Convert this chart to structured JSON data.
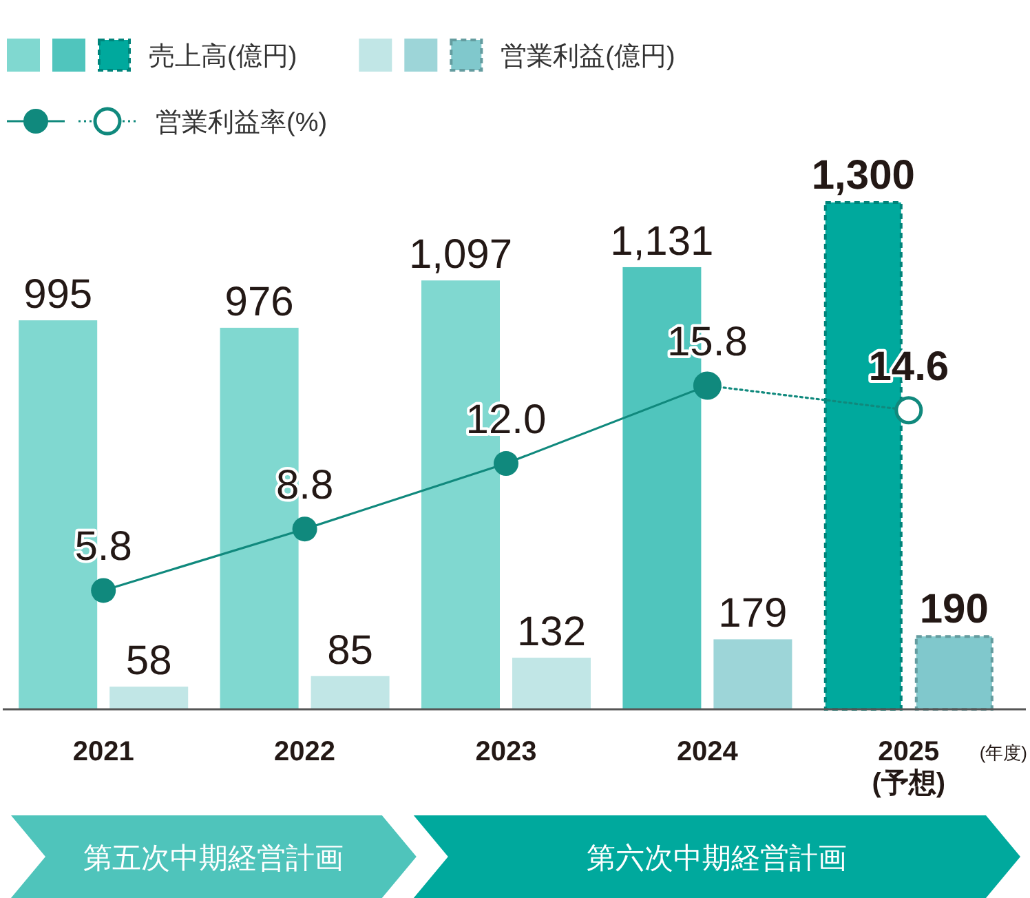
{
  "chart_data": {
    "type": "bar",
    "categories": [
      "2021",
      "2022",
      "2023",
      "2024",
      "2025\n(予想)"
    ],
    "xlabel": "(年度)",
    "tick_labels": "x",
    "legend": "top left",
    "series": [
      {
        "colors": [
          "#80d8d0",
          "#80d8d0",
          "#80d8d0",
          "#50c5bd",
          null
        ],
        "values": [
          995,
          976,
          1097,
          1131,
          null
        ],
        "value_labels": [
          "995",
          "976",
          "1,097",
          "1,131",
          null
        ]
      },
      {
        "name": "売上高(億円)",
        "color": "#00a99d",
        "line_style": "dashed",
        "values": [
          null,
          null,
          null,
          null,
          1300
        ],
        "value_labels": [
          null,
          null,
          null,
          null,
          "1,300"
        ]
      },
      {
        "colors": [
          "#c1e6e6",
          "#c1e6e6",
          "#c1e6e6",
          "#9dd5d8",
          null
        ],
        "values": [
          58,
          85,
          132,
          179,
          null
        ],
        "value_labels": [
          "58",
          "85",
          "132",
          "179",
          null
        ]
      },
      {
        "name": "営業利益(億円)",
        "color": "#80c8cc",
        "line_style": "dashed",
        "values": [
          null,
          null,
          null,
          null,
          190
        ],
        "value_labels": [
          null,
          null,
          null,
          null,
          "190"
        ]
      },
      {
        "type": "line",
        "axis": "y2",
        "color": "#10897d",
        "marker": "circle",
        "line_style": "solid",
        "values": [
          5.8,
          8.8,
          12.0,
          15.8,
          null
        ],
        "value_labels": [
          "5.8",
          "8.8",
          "12.0",
          "15.8",
          null
        ]
      },
      {
        "name": "営業利益率(%)",
        "type": "line",
        "axis": "y2",
        "color": "#10897d",
        "marker": "circle",
        "line_style": "dotted",
        "values": [
          null,
          null,
          null,
          15.8,
          14.6
        ],
        "value_labels": [
          null,
          null,
          null,
          null,
          "14.6"
        ]
      }
    ],
    "annotations": [
      "第五次中期経営計画",
      "第六次中期経営計画"
    ]
  }
}
